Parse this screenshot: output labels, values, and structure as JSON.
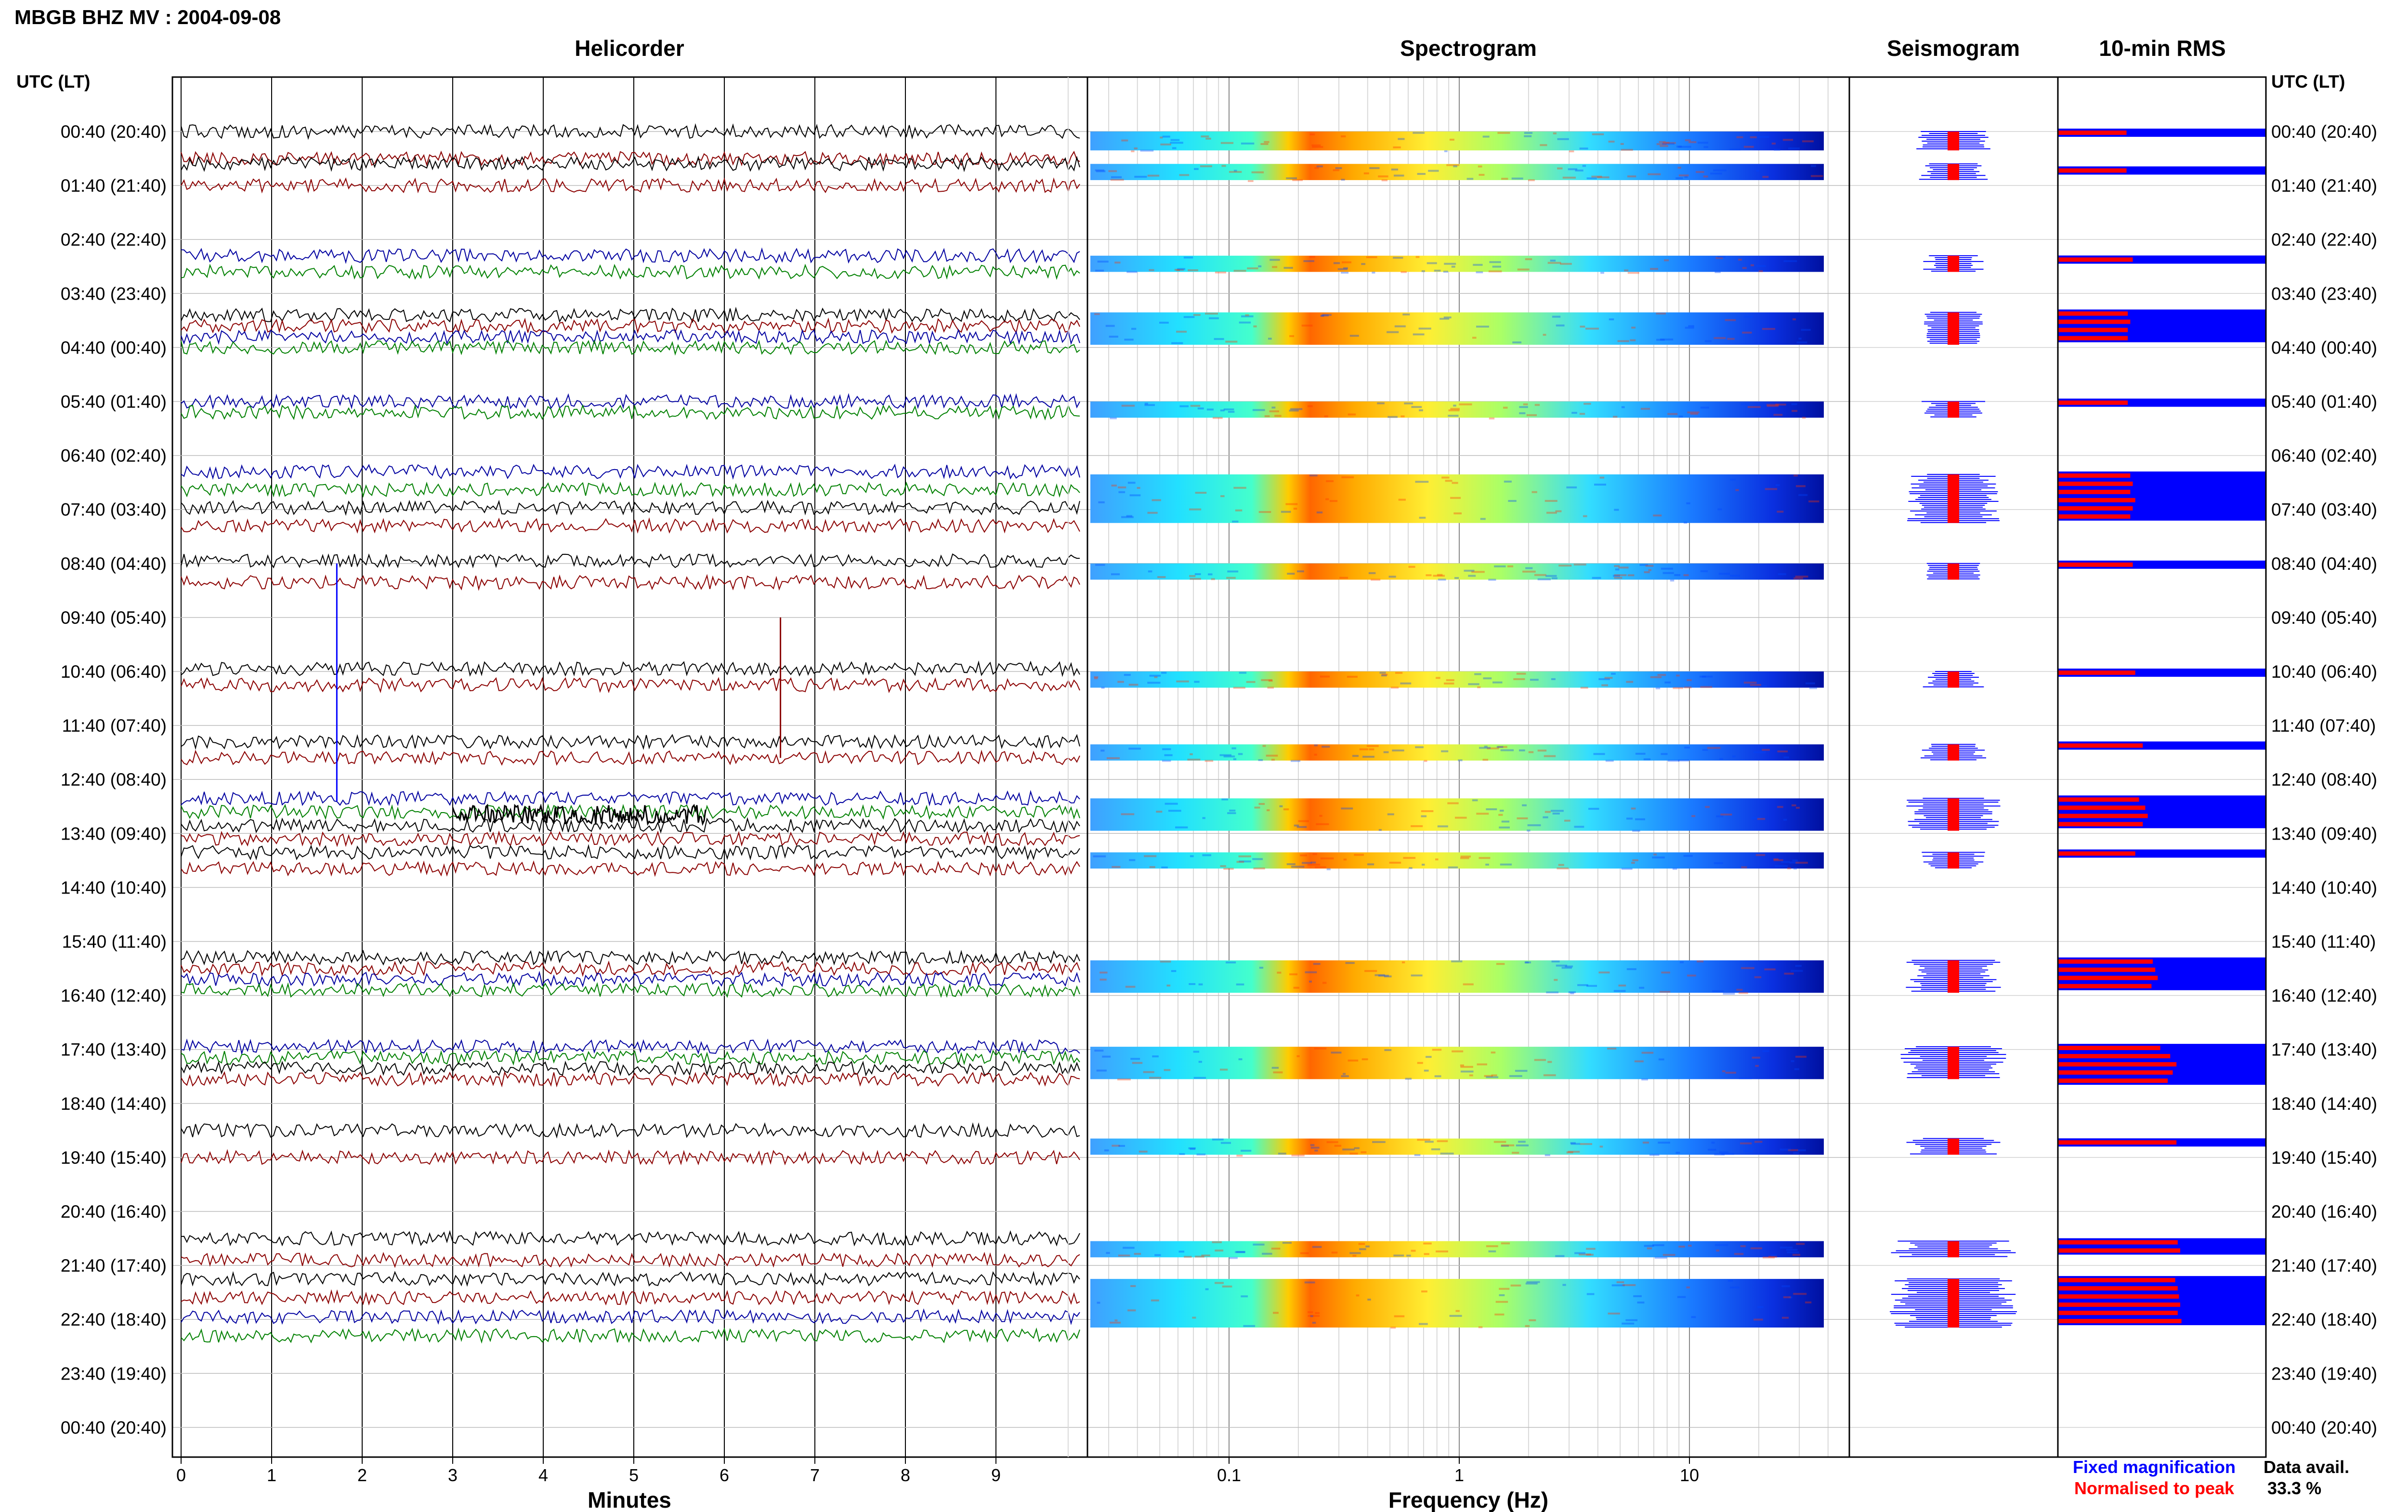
{
  "title": "MBGB BHZ MV : 2004-09-08",
  "panels": {
    "helicorder": "Helicorder",
    "spectrogram": "Spectrogram",
    "seismogram": "Seismogram",
    "rms": "10-min RMS"
  },
  "time_axis_label": "UTC (LT)",
  "time_axis_label_right": "UTC (LT)",
  "time_rows": [
    "00:40 (20:40)",
    "01:40 (21:40)",
    "02:40 (22:40)",
    "03:40 (23:40)",
    "04:40 (00:40)",
    "05:40 (01:40)",
    "06:40 (02:40)",
    "07:40 (03:40)",
    "08:40 (04:40)",
    "09:40 (05:40)",
    "10:40 (06:40)",
    "11:40 (07:40)",
    "12:40 (08:40)",
    "13:40 (09:40)",
    "14:40 (10:40)",
    "15:40 (11:40)",
    "16:40 (12:40)",
    "17:40 (13:40)",
    "18:40 (14:40)",
    "19:40 (15:40)",
    "20:40 (16:40)",
    "21:40 (17:40)",
    "22:40 (18:40)",
    "23:40 (19:40)",
    "00:40 (20:40)"
  ],
  "legend": {
    "fixed": "Fixed magnification",
    "normalised": "Normalised to peak",
    "fixed_color": "#0000ff",
    "normalised_color": "#ff0000"
  },
  "data_availability": {
    "label": "Data avail.",
    "value": "33.3 %"
  },
  "chart_data": [
    {
      "type": "line",
      "title": "Helicorder",
      "xlabel": "Minutes",
      "xticks": [
        "0",
        "1",
        "2",
        "3",
        "4",
        "5",
        "6",
        "7",
        "8",
        "9"
      ],
      "xlim": [
        0,
        10
      ],
      "ylabel": "UTC (LT)",
      "trace_colors": [
        "#000000",
        "#8b0000",
        "#0000a0",
        "#008000"
      ],
      "segments": [
        {
          "from_row": 0,
          "to_row": 0.5,
          "colors": [
            "#000000",
            "#8b0000"
          ]
        },
        {
          "from_row": 0.6,
          "to_row": 1.0,
          "colors": [
            "#000000",
            "#8b0000"
          ]
        },
        {
          "from_row": 2.3,
          "to_row": 2.6,
          "colors": [
            "#0000a0",
            "#008000"
          ]
        },
        {
          "from_row": 3.4,
          "to_row": 4.0,
          "colors": [
            "#000000",
            "#8b0000",
            "#0000a0",
            "#008000"
          ]
        },
        {
          "from_row": 5.0,
          "to_row": 5.2,
          "colors": [
            "#0000a0",
            "#008000"
          ]
        },
        {
          "from_row": 6.3,
          "to_row": 7.3,
          "colors": [
            "#0000a0",
            "#008000",
            "#000000",
            "#8b0000"
          ]
        },
        {
          "from_row": 7.95,
          "to_row": 8.35,
          "colors": [
            "#000000",
            "#8b0000"
          ]
        },
        {
          "from_row": 9.95,
          "to_row": 10.25,
          "colors": [
            "#000000",
            "#8b0000"
          ]
        },
        {
          "from_row": 11.3,
          "to_row": 11.6,
          "colors": [
            "#000000",
            "#8b0000"
          ]
        },
        {
          "from_row": 12.35,
          "to_row": 13.1,
          "colors": [
            "#0000a0",
            "#008000",
            "#000000",
            "#8b0000"
          ]
        },
        {
          "from_row": 13.35,
          "to_row": 13.65,
          "colors": [
            "#000000",
            "#8b0000"
          ]
        },
        {
          "from_row": 15.3,
          "to_row": 15.9,
          "colors": [
            "#000000",
            "#8b0000",
            "#0000a0",
            "#008000"
          ]
        },
        {
          "from_row": 16.95,
          "to_row": 17.55,
          "colors": [
            "#0000a0",
            "#008000",
            "#000000",
            "#8b0000"
          ]
        },
        {
          "from_row": 18.5,
          "to_row": 19.0,
          "colors": [
            "#000000",
            "#8b0000"
          ]
        },
        {
          "from_row": 20.5,
          "to_row": 20.9,
          "colors": [
            "#000000",
            "#8b0000"
          ]
        },
        {
          "from_row": 21.25,
          "to_row": 22.3,
          "colors": [
            "#000000",
            "#8b0000",
            "#0000a0",
            "#008000"
          ]
        }
      ],
      "spikes": [
        {
          "minute": 1.72,
          "from_row": 8.0,
          "to_row": 12.4,
          "color": "#0000ff"
        },
        {
          "minute": 6.62,
          "from_row": 9.0,
          "to_row": 11.6,
          "color": "#8b0000"
        }
      ],
      "burst": {
        "from_minute": 3.0,
        "to_minute": 5.8,
        "row": 12.65,
        "color": "#000000"
      }
    },
    {
      "type": "heatmap",
      "title": "Spectrogram",
      "xlabel": "Frequency (Hz)",
      "xscale": "log",
      "xlim": [
        0.02,
        50
      ],
      "xticks": [
        "0.1",
        "1",
        "10"
      ],
      "bands": [
        {
          "from_row": 0.0,
          "to_row": 0.35
        },
        {
          "from_row": 0.6,
          "to_row": 0.9
        },
        {
          "from_row": 2.3,
          "to_row": 2.6
        },
        {
          "from_row": 3.35,
          "to_row": 3.95
        },
        {
          "from_row": 5.0,
          "to_row": 5.3
        },
        {
          "from_row": 6.35,
          "to_row": 7.25
        },
        {
          "from_row": 8.0,
          "to_row": 8.3
        },
        {
          "from_row": 10.0,
          "to_row": 10.3
        },
        {
          "from_row": 11.35,
          "to_row": 11.65
        },
        {
          "from_row": 12.35,
          "to_row": 12.95
        },
        {
          "from_row": 13.35,
          "to_row": 13.65
        },
        {
          "from_row": 15.35,
          "to_row": 15.95
        },
        {
          "from_row": 16.95,
          "to_row": 17.55
        },
        {
          "from_row": 18.65,
          "to_row": 18.95
        },
        {
          "from_row": 20.55,
          "to_row": 20.85
        },
        {
          "from_row": 21.25,
          "to_row": 22.15
        }
      ]
    },
    {
      "type": "line",
      "title": "Seismogram",
      "bands": [
        {
          "from_row": 0.0,
          "to_row": 0.35,
          "width": 0.35
        },
        {
          "from_row": 0.6,
          "to_row": 0.9,
          "width": 0.35
        },
        {
          "from_row": 2.3,
          "to_row": 2.6,
          "width": 0.3
        },
        {
          "from_row": 3.35,
          "to_row": 3.95,
          "width": 0.3
        },
        {
          "from_row": 5.0,
          "to_row": 5.3,
          "width": 0.3
        },
        {
          "from_row": 6.35,
          "to_row": 7.25,
          "width": 0.45
        },
        {
          "from_row": 8.0,
          "to_row": 8.3,
          "width": 0.3
        },
        {
          "from_row": 10.0,
          "to_row": 10.3,
          "width": 0.3
        },
        {
          "from_row": 11.35,
          "to_row": 11.65,
          "width": 0.35
        },
        {
          "from_row": 12.35,
          "to_row": 12.95,
          "width": 0.45
        },
        {
          "from_row": 13.35,
          "to_row": 13.65,
          "width": 0.3
        },
        {
          "from_row": 15.35,
          "to_row": 15.95,
          "width": 0.45
        },
        {
          "from_row": 16.95,
          "to_row": 17.55,
          "width": 0.5
        },
        {
          "from_row": 18.65,
          "to_row": 18.95,
          "width": 0.5
        },
        {
          "from_row": 20.55,
          "to_row": 20.85,
          "width": 0.6
        },
        {
          "from_row": 21.25,
          "to_row": 22.15,
          "width": 0.6
        }
      ]
    },
    {
      "type": "bar",
      "title": "10-min RMS",
      "bands": [
        {
          "row": 0.0,
          "rms": [
            0.55
          ]
        },
        {
          "row": 0.7,
          "rms": [
            0.55
          ]
        },
        {
          "row": 2.35,
          "rms": [
            0.6
          ]
        },
        {
          "row": 3.35,
          "rms": [
            0.56,
            0.58,
            0.56,
            0.56
          ]
        },
        {
          "row": 5.0,
          "rms": [
            0.56
          ]
        },
        {
          "row": 6.35,
          "rms": [
            0.58,
            0.6,
            0.58,
            0.62,
            0.6,
            0.58
          ]
        },
        {
          "row": 8.0,
          "rms": [
            0.6
          ]
        },
        {
          "row": 10.0,
          "rms": [
            0.62
          ]
        },
        {
          "row": 11.35,
          "rms": [
            0.68
          ]
        },
        {
          "row": 12.35,
          "rms": [
            0.65,
            0.7,
            0.72,
            0.68
          ]
        },
        {
          "row": 13.35,
          "rms": [
            0.62
          ]
        },
        {
          "row": 15.35,
          "rms": [
            0.76,
            0.78,
            0.8,
            0.75
          ]
        },
        {
          "row": 16.95,
          "rms": [
            0.82,
            0.9,
            0.95,
            0.92,
            0.88
          ]
        },
        {
          "row": 18.7,
          "rms": [
            0.95
          ]
        },
        {
          "row": 20.55,
          "rms": [
            0.96,
            0.98
          ]
        },
        {
          "row": 21.25,
          "rms": [
            0.94,
            0.96,
            0.97,
            0.98,
            0.96,
            0.99
          ]
        }
      ]
    }
  ]
}
